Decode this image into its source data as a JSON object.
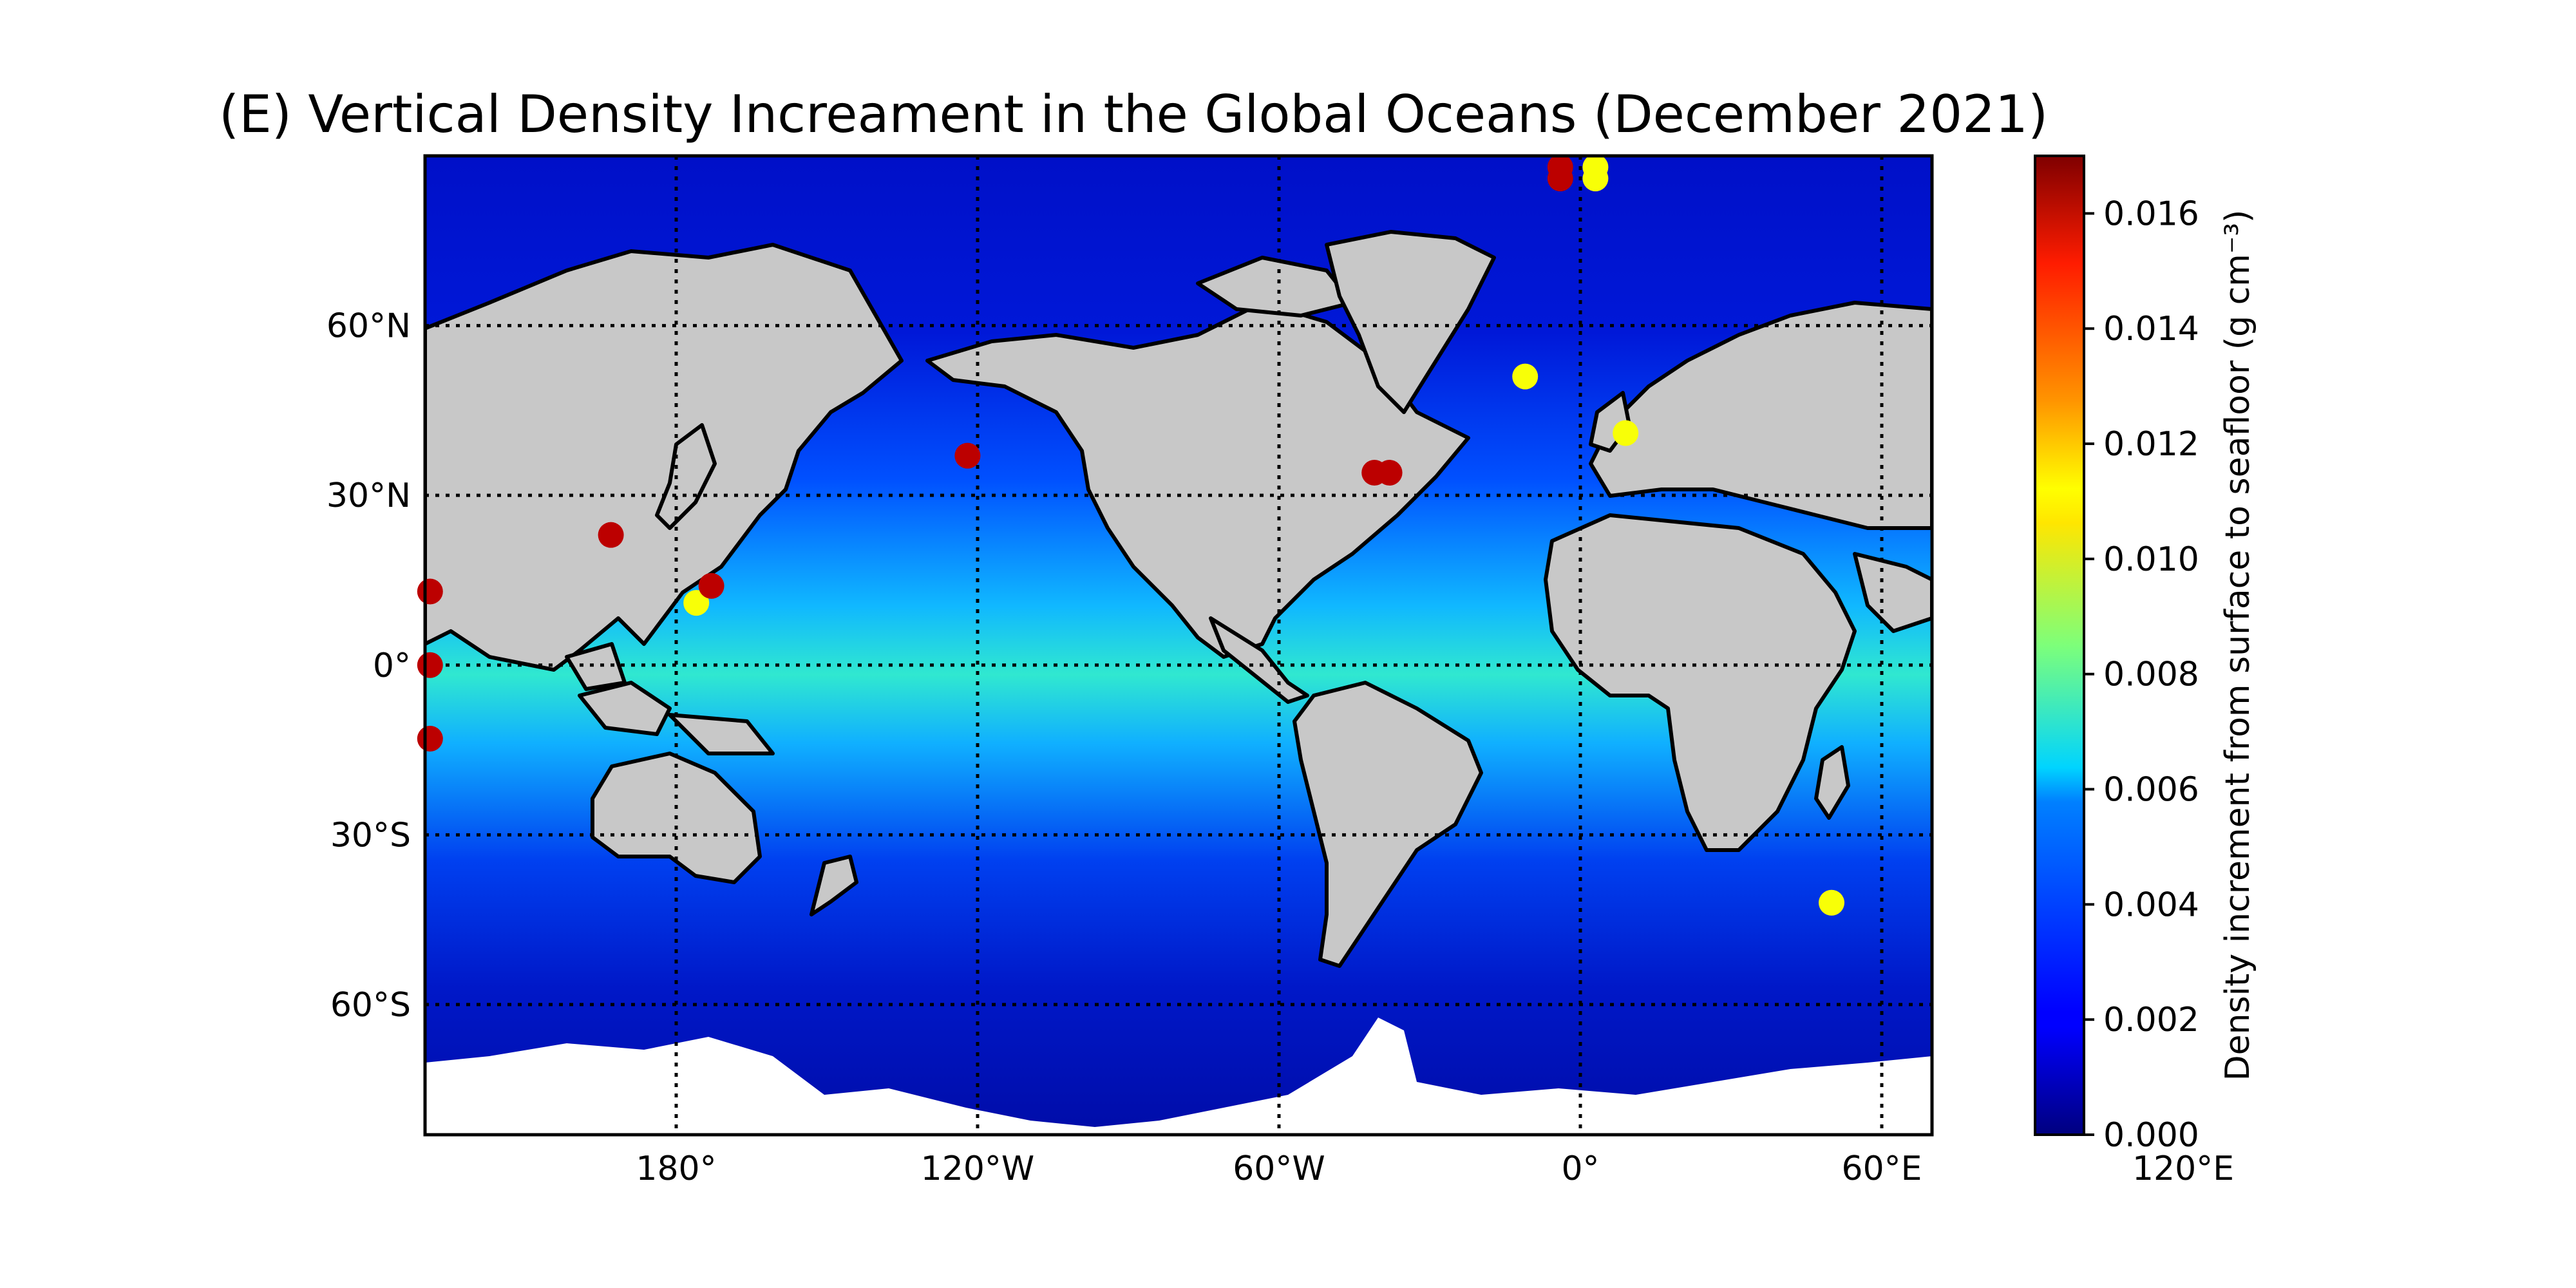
{
  "title": "(E) Vertical Density Increament in the Global Oceans (December 2021)",
  "map": {
    "central_longitude": "160°W",
    "lon_range": [
      -230,
      70
    ],
    "lat_range": [
      -83,
      90
    ],
    "lon_ticks": [
      {
        "lon": -240,
        "label": "120°E"
      },
      {
        "lon": -180,
        "label": "180°"
      },
      {
        "lon": -120,
        "label": "120°W"
      },
      {
        "lon": -60,
        "label": "60°W"
      },
      {
        "lon": 0,
        "label": "0°"
      },
      {
        "lon": 60,
        "label": "60°E"
      }
    ],
    "lat_ticks": [
      {
        "lat": 60,
        "label": "60°N"
      },
      {
        "lat": 30,
        "label": "30°N"
      },
      {
        "lat": 0,
        "label": "0°"
      },
      {
        "lat": -30,
        "label": "30°S"
      },
      {
        "lat": -60,
        "label": "60°S"
      }
    ],
    "gridlines": true,
    "land_color": "#c8c8c8",
    "ocean_field": "Density increment from surface to seafloor",
    "ocean_pattern": "higher values (cyan/green, ~0.006-0.008) in tropical band, lower values (dark blue, ~0.001-0.002) at high latitudes"
  },
  "colorbar": {
    "label": "Density increment from surface to seafloor (g cm⁻³)",
    "min": 0.0,
    "max": 0.017,
    "colormap": "jet",
    "ticks": [
      "0.000",
      "0.002",
      "0.004",
      "0.006",
      "0.008",
      "0.010",
      "0.012",
      "0.014",
      "0.016"
    ]
  },
  "stations": [
    {
      "lon": -229,
      "lat": 13,
      "value": 0.016
    },
    {
      "lon": -229,
      "lat": 0,
      "value": 0.016
    },
    {
      "lon": -229,
      "lat": -13,
      "value": 0.016
    },
    {
      "lon": -193,
      "lat": 23,
      "value": 0.016
    },
    {
      "lon": -176,
      "lat": 11,
      "value": 0.0105
    },
    {
      "lon": -173,
      "lat": 14,
      "value": 0.016
    },
    {
      "lon": -122,
      "lat": 37,
      "value": 0.016
    },
    {
      "lon": -41,
      "lat": 34,
      "value": 0.016
    },
    {
      "lon": -38,
      "lat": 34,
      "value": 0.016
    },
    {
      "lon": -4,
      "lat": 86,
      "value": 0.016
    },
    {
      "lon": -4,
      "lat": 88,
      "value": 0.016
    },
    {
      "lon": 3,
      "lat": 86,
      "value": 0.0105
    },
    {
      "lon": 3,
      "lat": 88,
      "value": 0.0105
    },
    {
      "lon": -11,
      "lat": 51,
      "value": 0.0105
    },
    {
      "lon": 9,
      "lat": 41,
      "value": 0.0105
    },
    {
      "lon": 50,
      "lat": -42,
      "value": 0.0105
    }
  ]
}
